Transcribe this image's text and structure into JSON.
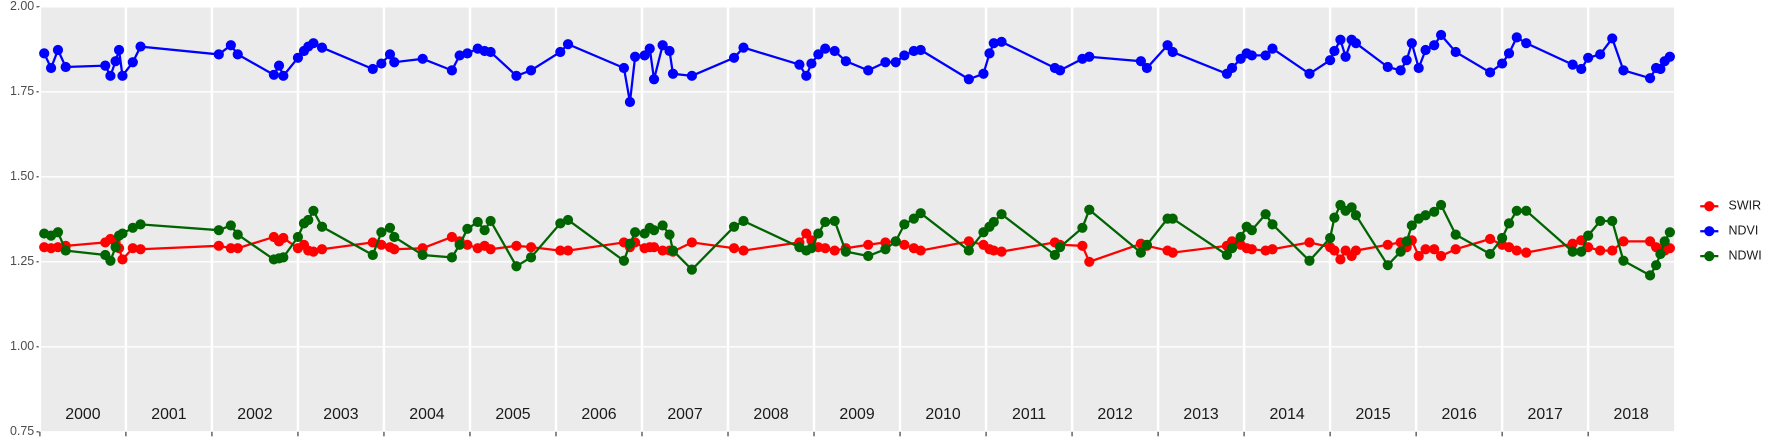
{
  "chart_data": {
    "type": "line",
    "x": [
      2000.05,
      2000.13,
      2000.21,
      2000.3,
      2000.76,
      2000.82,
      2000.88,
      2000.92,
      2000.96,
      2001.08,
      2001.17,
      2002.08,
      2002.22,
      2002.3,
      2002.72,
      2002.78,
      2002.83,
      2003,
      2003.07,
      2003.12,
      2003.18,
      2003.28,
      2003.87,
      2003.97,
      2004.07,
      2004.12,
      2004.45,
      2004.79,
      2004.88,
      2004.97,
      2005.09,
      2005.17,
      2005.24,
      2005.54,
      2005.71,
      2006.05,
      2006.14,
      2006.79,
      2006.86,
      2006.92,
      2007.03,
      2007.09,
      2007.14,
      2007.24,
      2007.32,
      2007.36,
      2007.58,
      2008.07,
      2008.18,
      2008.83,
      2008.91,
      2008.97,
      2009.05,
      2009.13,
      2009.24,
      2009.37,
      2009.63,
      2009.83,
      2009.95,
      2010.05,
      2010.16,
      2010.24,
      2010.8,
      2010.97,
      2011.04,
      2011.09,
      2011.18,
      2011.8,
      2011.86,
      2012.12,
      2012.2,
      2012.8,
      2012.87,
      2013.11,
      2013.17,
      2013.8,
      2013.86,
      2013.96,
      2014.03,
      2014.09,
      2014.25,
      2014.33,
      2014.76,
      2015,
      2015.05,
      2015.12,
      2015.18,
      2015.25,
      2015.3,
      2015.67,
      2015.82,
      2015.89,
      2015.95,
      2016.03,
      2016.11,
      2016.21,
      2016.29,
      2016.46,
      2016.86,
      2017,
      2017.08,
      2017.17,
      2017.28,
      2017.82,
      2017.92,
      2018,
      2018.14,
      2018.28,
      2018.41,
      2018.72,
      2018.79,
      2018.84,
      2018.89,
      2018.95
    ],
    "series": [
      {
        "name": "SWIR",
        "color": "#ff0000",
        "values": [
          1.293,
          1.29,
          1.293,
          1.297,
          1.307,
          1.317,
          1.307,
          1.29,
          1.257,
          1.29,
          1.287,
          1.297,
          1.29,
          1.29,
          1.323,
          1.31,
          1.32,
          1.29,
          1.3,
          1.283,
          1.28,
          1.287,
          1.307,
          1.3,
          1.293,
          1.287,
          1.29,
          1.323,
          1.31,
          1.3,
          1.29,
          1.297,
          1.287,
          1.297,
          1.293,
          1.283,
          1.283,
          1.307,
          1.293,
          1.307,
          1.29,
          1.293,
          1.293,
          1.283,
          1.283,
          1.28,
          1.307,
          1.29,
          1.283,
          1.307,
          1.333,
          1.313,
          1.293,
          1.29,
          1.283,
          1.29,
          1.3,
          1.307,
          1.31,
          1.3,
          1.29,
          1.283,
          1.31,
          1.3,
          1.287,
          1.283,
          1.28,
          1.307,
          1.3,
          1.297,
          1.25,
          1.303,
          1.297,
          1.283,
          1.277,
          1.297,
          1.31,
          1.3,
          1.29,
          1.287,
          1.283,
          1.287,
          1.307,
          1.293,
          1.283,
          1.257,
          1.283,
          1.267,
          1.283,
          1.3,
          1.307,
          1.293,
          1.313,
          1.267,
          1.287,
          1.287,
          1.267,
          1.287,
          1.317,
          1.3,
          1.293,
          1.283,
          1.277,
          1.303,
          1.313,
          1.293,
          1.283,
          1.283,
          1.31,
          1.31,
          1.293,
          1.287,
          1.283,
          1.29
        ]
      },
      {
        "name": "NDVI",
        "color": "#0000ff",
        "values": [
          1.863,
          1.82,
          1.873,
          1.823,
          1.827,
          1.797,
          1.84,
          1.873,
          1.797,
          1.837,
          1.883,
          1.86,
          1.887,
          1.86,
          1.8,
          1.827,
          1.797,
          1.85,
          1.87,
          1.883,
          1.893,
          1.88,
          1.817,
          1.833,
          1.86,
          1.837,
          1.847,
          1.813,
          1.857,
          1.863,
          1.877,
          1.87,
          1.867,
          1.797,
          1.813,
          1.867,
          1.89,
          1.82,
          1.72,
          1.853,
          1.857,
          1.877,
          1.787,
          1.887,
          1.87,
          1.803,
          1.797,
          1.85,
          1.88,
          1.83,
          1.797,
          1.833,
          1.86,
          1.877,
          1.87,
          1.84,
          1.813,
          1.837,
          1.837,
          1.857,
          1.87,
          1.873,
          1.787,
          1.803,
          1.863,
          1.893,
          1.897,
          1.82,
          1.813,
          1.847,
          1.853,
          1.84,
          1.82,
          1.887,
          1.867,
          1.803,
          1.82,
          1.847,
          1.863,
          1.857,
          1.857,
          1.877,
          1.803,
          1.843,
          1.87,
          1.903,
          1.853,
          1.903,
          1.893,
          1.823,
          1.813,
          1.843,
          1.893,
          1.82,
          1.873,
          1.887,
          1.917,
          1.867,
          1.807,
          1.833,
          1.863,
          1.91,
          1.893,
          1.83,
          1.817,
          1.85,
          1.86,
          1.907,
          1.813,
          1.79,
          1.82,
          1.817,
          1.84,
          1.853
        ]
      },
      {
        "name": "NDWI",
        "color": "#006400",
        "values": [
          1.333,
          1.327,
          1.337,
          1.283,
          1.27,
          1.253,
          1.293,
          1.327,
          1.333,
          1.35,
          1.36,
          1.343,
          1.357,
          1.33,
          1.257,
          1.26,
          1.263,
          1.323,
          1.363,
          1.373,
          1.4,
          1.353,
          1.27,
          1.337,
          1.35,
          1.323,
          1.27,
          1.263,
          1.3,
          1.347,
          1.367,
          1.343,
          1.37,
          1.237,
          1.263,
          1.363,
          1.373,
          1.253,
          1.303,
          1.337,
          1.333,
          1.35,
          1.343,
          1.357,
          1.33,
          1.283,
          1.227,
          1.353,
          1.37,
          1.293,
          1.283,
          1.29,
          1.333,
          1.367,
          1.37,
          1.28,
          1.267,
          1.287,
          1.31,
          1.36,
          1.377,
          1.393,
          1.283,
          1.337,
          1.353,
          1.367,
          1.39,
          1.27,
          1.293,
          1.35,
          1.403,
          1.277,
          1.3,
          1.377,
          1.377,
          1.27,
          1.29,
          1.323,
          1.353,
          1.343,
          1.39,
          1.36,
          1.253,
          1.32,
          1.38,
          1.417,
          1.4,
          1.41,
          1.387,
          1.24,
          1.28,
          1.31,
          1.357,
          1.377,
          1.387,
          1.397,
          1.417,
          1.33,
          1.273,
          1.32,
          1.363,
          1.4,
          1.4,
          1.28,
          1.28,
          1.327,
          1.37,
          1.37,
          1.253,
          1.21,
          1.24,
          1.273,
          1.31,
          1.337
        ]
      }
    ],
    "xlim": [
      2000,
      2019
    ],
    "xticks": [
      2000,
      2001,
      2002,
      2003,
      2004,
      2005,
      2006,
      2007,
      2008,
      2009,
      2010,
      2011,
      2012,
      2013,
      2014,
      2015,
      2016,
      2017,
      2018
    ],
    "ylim": [
      0.75,
      2
    ],
    "yticks": [
      0.75,
      {
        "value": 1,
        "label": "1.00"
      },
      1.25,
      {
        "value": 1.5,
        "label": "1.50"
      },
      1.75,
      {
        "value": 2,
        "label": "2.00"
      }
    ],
    "grid": true,
    "legend": "right"
  }
}
